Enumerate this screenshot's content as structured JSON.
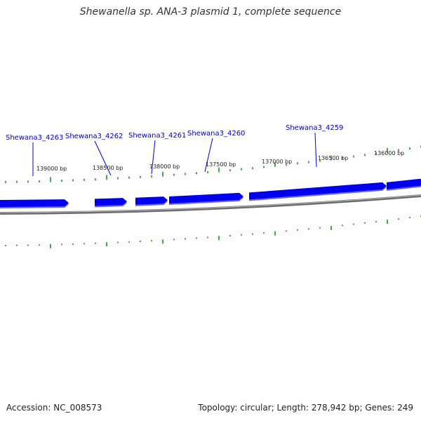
{
  "title": "Shewanella sp. ANA-3 plasmid 1, complete sequence",
  "footer": {
    "accession": "Accession: NC_008573",
    "summary": "Topology: circular; Length: 278,942 bp; Genes: 249"
  },
  "colors": {
    "gene_fill": "#0000ee",
    "gene_shadow": "#6666ff",
    "tick": "#008000",
    "backbone": "#888888",
    "gene_label": "#0000cc"
  },
  "genes": [
    {
      "label": "Shewana3_4263",
      "strand": "forward"
    },
    {
      "label": "Shewana3_4262",
      "strand": "forward"
    },
    {
      "label": "Shewana3_4261",
      "strand": "forward"
    },
    {
      "label": "Shewana3_4260",
      "strand": "forward"
    },
    {
      "label": "Shewana3_4259",
      "strand": "forward"
    },
    {
      "label": "",
      "strand": "forward"
    }
  ],
  "position_labels": [
    "139000 bp",
    "138500 bp",
    "138000 bp",
    "137500 bp",
    "137000 bp",
    "136500 bp",
    "136000 bp"
  ]
}
